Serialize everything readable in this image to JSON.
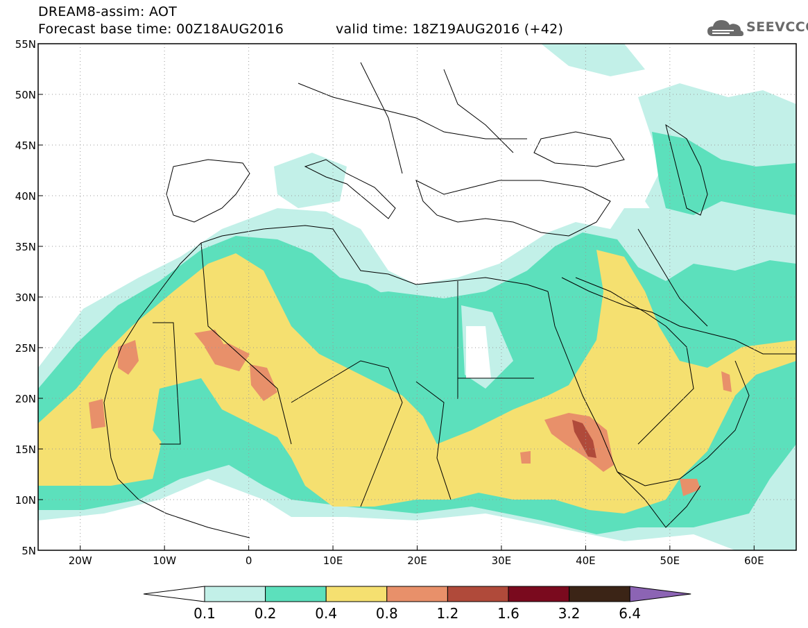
{
  "header": {
    "model_line": "DREAM8-assim: AOT",
    "base_time": "Forecast base time: 00Z18AUG2016",
    "valid_time": "valid time: 18Z19AUG2016 (+42)"
  },
  "logo": {
    "text": "SEEVCCC",
    "icon": "cloud-logo-icon"
  },
  "map": {
    "lat_labels": [
      "55N",
      "50N",
      "45N",
      "40N",
      "35N",
      "30N",
      "25N",
      "20N",
      "15N",
      "10N",
      "5N"
    ],
    "lon_labels": [
      "20W",
      "10W",
      "0",
      "10E",
      "20E",
      "30E",
      "40E",
      "50E",
      "60E"
    ]
  },
  "colorbar": {
    "labels": [
      "0.1",
      "0.2",
      "0.4",
      "0.8",
      "1.2",
      "1.6",
      "3.2",
      "6.4"
    ],
    "colors": [
      "#c2f0e8",
      "#5ce0bc",
      "#f5e070",
      "#e8906a",
      "#b04a3a",
      "#7a0a1e",
      "#3b2416",
      "#8c64b4"
    ],
    "under_color": "#ffffff"
  }
}
